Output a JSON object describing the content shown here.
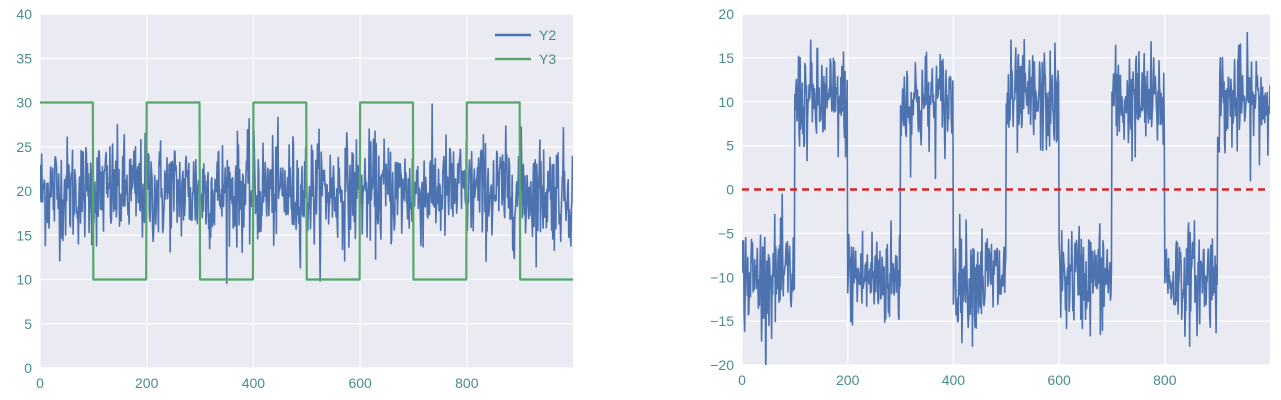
{
  "chart_data": [
    {
      "type": "line",
      "xlim": [
        0,
        999
      ],
      "ylim": [
        0,
        40
      ],
      "xticks": [
        0,
        200,
        400,
        600,
        800
      ],
      "yticks": [
        0,
        5,
        10,
        15,
        20,
        25,
        30,
        35,
        40
      ],
      "grid": true,
      "legend_position": "top-right",
      "series": [
        {
          "name": "Y2",
          "kind": "noise",
          "mean": 20,
          "spread": 3,
          "color": "#4c72b0"
        },
        {
          "name": "Y3",
          "kind": "square",
          "high": 30,
          "low": 10,
          "period": 200,
          "start_high": true,
          "color": "#55a868"
        }
      ]
    },
    {
      "type": "line",
      "xlim": [
        0,
        999
      ],
      "ylim": [
        -20,
        20
      ],
      "xticks": [
        0,
        200,
        400,
        600,
        800
      ],
      "yticks": [
        -20,
        -15,
        -10,
        -5,
        0,
        5,
        10,
        15,
        20
      ],
      "grid": true,
      "series": [
        {
          "kind": "noisy-square",
          "high": 10,
          "low": -10,
          "spread": 3,
          "period": 200,
          "start_high": false,
          "color": "#4c72b0"
        }
      ],
      "reference_line": {
        "y": 0,
        "style": "dashed",
        "color": "#d62728"
      }
    }
  ]
}
